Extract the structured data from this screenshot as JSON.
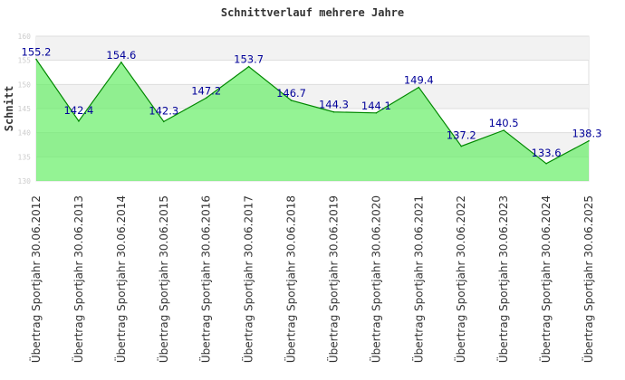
{
  "chart_data": {
    "type": "area",
    "title": "Schnittverlauf mehrere Jahre",
    "xlabel": "",
    "ylabel": "Schnitt",
    "ylim": [
      130,
      160
    ],
    "yticks": [
      130,
      135,
      140,
      145,
      150,
      155,
      160
    ],
    "categories": [
      "Übertrag Sportjahr 30.06.2012",
      "Übertrag Sportjahr 30.06.2013",
      "Übertrag Sportjahr 30.06.2014",
      "Übertrag Sportjahr 30.06.2015",
      "Übertrag Sportjahr 30.06.2016",
      "Übertrag Sportjahr 30.06.2017",
      "Übertrag Sportjahr 30.06.2018",
      "Übertrag Sportjahr 30.06.2019",
      "Übertrag Sportjahr 30.06.2020",
      "Übertrag Sportjahr 30.06.2021",
      "Übertrag Sportjahr 30.06.2022",
      "Übertrag Sportjahr 30.06.2023",
      "Übertrag Sportjahr 30.06.2024",
      "Übertrag Sportjahr 30.06.2025"
    ],
    "values": [
      155.2,
      142.4,
      154.6,
      142.3,
      147.2,
      153.7,
      146.7,
      144.3,
      144.1,
      149.4,
      137.2,
      140.5,
      133.6,
      138.3
    ],
    "labels": [
      "155.2",
      "142.4",
      "154.6",
      "142.3",
      "147.2",
      "153.7",
      "146.7",
      "144.3",
      "144.1",
      "149.4",
      "137.2",
      "140.5",
      "133.6",
      "138.3"
    ],
    "grid": true,
    "colors": {
      "fill": "#66ee66",
      "line": "#008800",
      "label": "#000099",
      "band": "#f2f2f2"
    }
  }
}
